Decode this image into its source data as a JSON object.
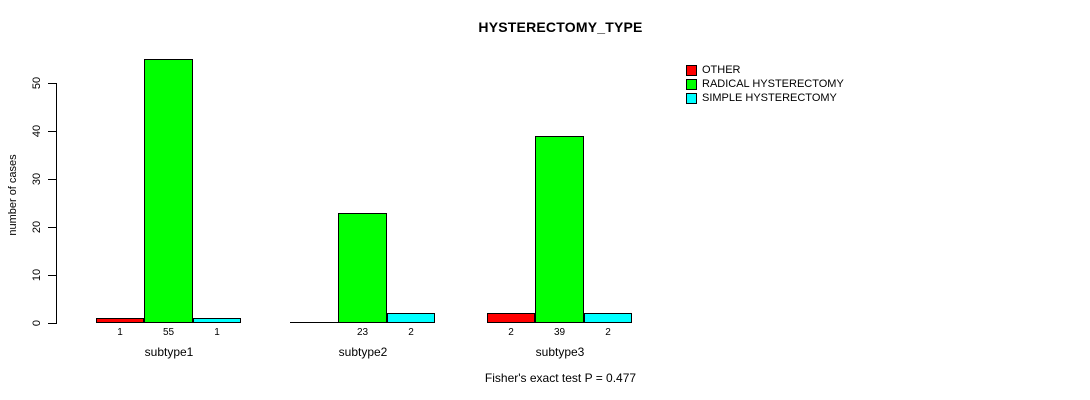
{
  "title": "HYSTERECTOMY_TYPE",
  "footer_note": "Fisher's exact test P = 0.477",
  "ylabel": "number of cases",
  "legend": [
    {
      "label": "OTHER",
      "color": "#FF0000"
    },
    {
      "label": "RADICAL HYSTERECTOMY",
      "color": "#00FF00"
    },
    {
      "label": "SIMPLE HYSTERECTOMY",
      "color": "#00FFFF"
    }
  ],
  "chart_data": {
    "type": "bar",
    "title": "HYSTERECTOMY_TYPE",
    "xlabel": "",
    "ylabel": "number of cases",
    "categories": [
      "subtype1",
      "subtype2",
      "subtype3"
    ],
    "series": [
      {
        "name": "OTHER",
        "color": "#FF0000",
        "values": [
          1,
          0,
          2
        ]
      },
      {
        "name": "RADICAL HYSTERECTOMY",
        "color": "#00FF00",
        "values": [
          55,
          23,
          39
        ]
      },
      {
        "name": "SIMPLE HYSTERECTOMY",
        "color": "#00FFFF",
        "values": [
          1,
          2,
          2
        ]
      }
    ],
    "bar_value_labels": {
      "subtype1": [
        "1",
        "55",
        "1"
      ],
      "subtype2": [
        "",
        "23",
        "2"
      ],
      "subtype3": [
        "2",
        "39",
        "2"
      ]
    },
    "yticks": [
      0,
      10,
      20,
      30,
      40,
      50
    ],
    "ylim": [
      0,
      55
    ],
    "grid": false,
    "legend_position": "top-right",
    "annotation": "Fisher's exact test P = 0.477"
  }
}
